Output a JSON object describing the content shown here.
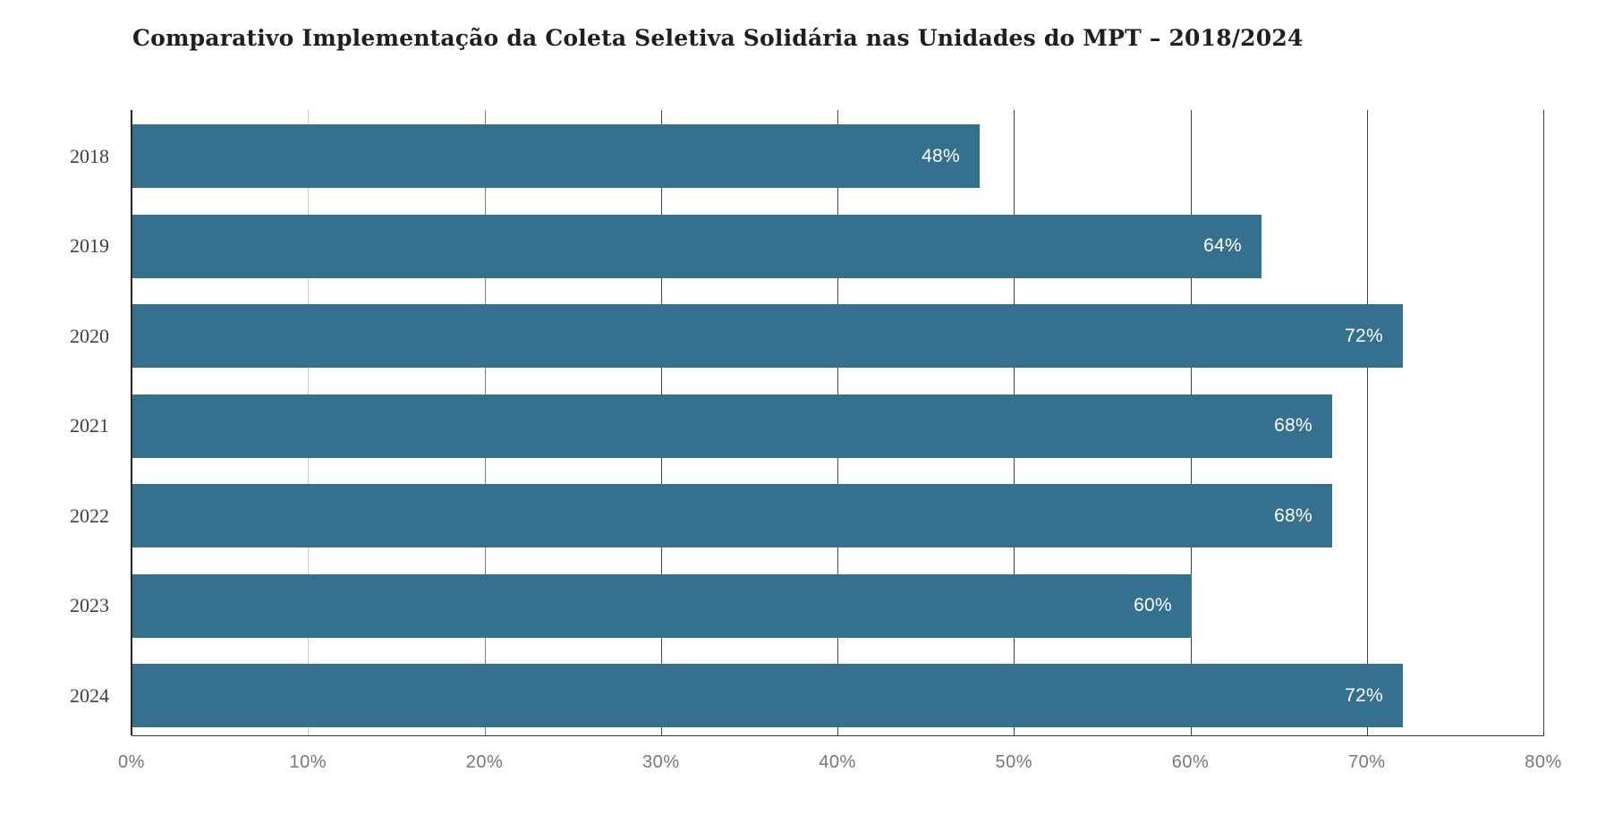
{
  "chart_data": {
    "type": "bar",
    "orientation": "horizontal",
    "title": "Comparativo Implementação da Coleta Seletiva Solidária nas Unidades do MPT – 2018/2024",
    "categories": [
      "2018",
      "2019",
      "2020",
      "2021",
      "2022",
      "2023",
      "2024"
    ],
    "values": [
      48,
      64,
      72,
      68,
      68,
      60,
      72
    ],
    "value_labels": [
      "48%",
      "64%",
      "72%",
      "68%",
      "68%",
      "60%",
      "72%"
    ],
    "x_ticks": [
      "0%",
      "10%",
      "20%",
      "30%",
      "40%",
      "50%",
      "60%",
      "70%",
      "80%"
    ],
    "x_tick_values": [
      0,
      10,
      20,
      30,
      40,
      50,
      60,
      70,
      80
    ],
    "xlim": [
      0,
      80
    ],
    "grid": true,
    "legend": false,
    "bar_color": "#36708F",
    "value_label_color": "#ffffff",
    "axis_color": "#262626",
    "grid_colors": [
      "#cccccc",
      "#808080",
      "#4d4d4d",
      "#4d4d4d",
      "#404040",
      "#404040",
      "#404040",
      "#404040"
    ]
  }
}
